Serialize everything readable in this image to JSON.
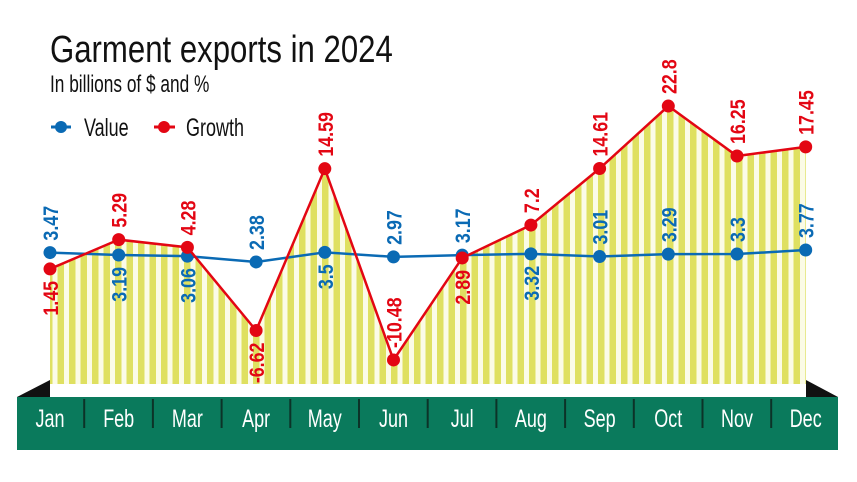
{
  "chart_data": {
    "type": "line",
    "title": "Garment exports in 2024",
    "subtitle": "In billions of $ and %",
    "categories": [
      "Jan",
      "Feb",
      "Mar",
      "Apr",
      "May",
      "Jun",
      "Jul",
      "Aug",
      "Sep",
      "Oct",
      "Nov",
      "Dec"
    ],
    "series": [
      {
        "name": "Value",
        "color": "#0a6ab4",
        "values": [
          3.47,
          3.19,
          3.06,
          2.38,
          3.5,
          2.97,
          3.17,
          3.32,
          3.01,
          3.29,
          3.3,
          3.77
        ]
      },
      {
        "name": "Growth",
        "color": "#e30613",
        "values": [
          1.45,
          5.29,
          4.28,
          -6.62,
          14.59,
          -10.48,
          2.89,
          7.2,
          14.61,
          22.8,
          16.25,
          17.45
        ]
      }
    ],
    "area_under": "Growth",
    "area_color": "#dfe060",
    "axis_band_color": "#0a7a5c",
    "legend_placement": "top-left",
    "grid": false
  }
}
